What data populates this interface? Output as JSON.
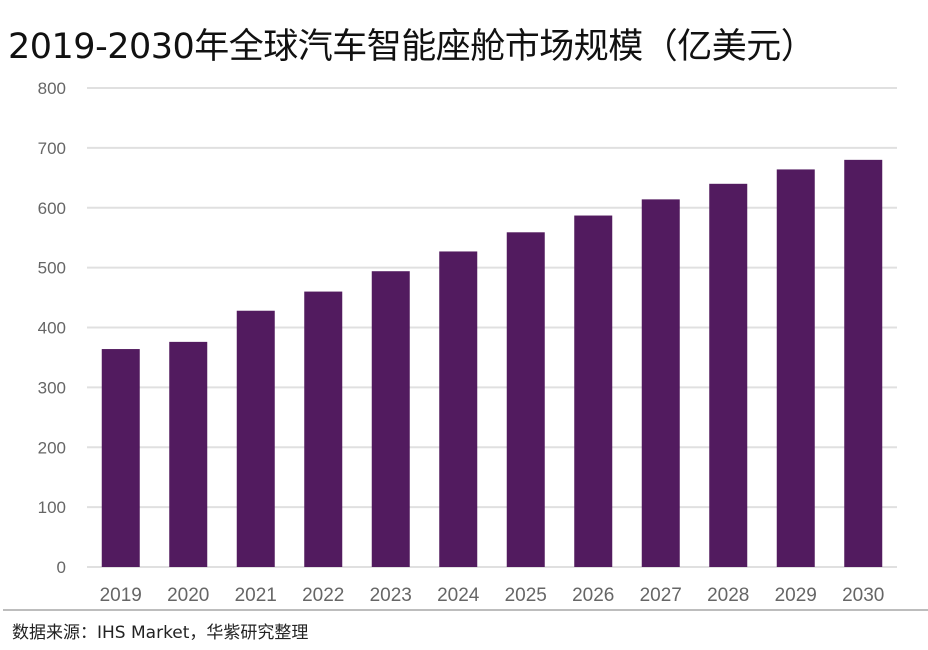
{
  "chart_data": {
    "type": "bar",
    "title": "2019-2030年全球汽车智能座舱市场规模（亿美元）",
    "xlabel": "",
    "ylabel": "",
    "categories": [
      "2019",
      "2020",
      "2021",
      "2022",
      "2023",
      "2024",
      "2025",
      "2026",
      "2027",
      "2028",
      "2029",
      "2030"
    ],
    "values": [
      364,
      376,
      428,
      460,
      494,
      527,
      559,
      587,
      614,
      640,
      664,
      680
    ],
    "ylim": [
      0,
      800
    ],
    "yticks": [
      0,
      100,
      200,
      300,
      400,
      500,
      600,
      700,
      800
    ],
    "grid": true,
    "legend": "none",
    "bar_color": "#521b5f",
    "grid_color": "#e0e0e0",
    "tick_label_color": "#666666"
  },
  "source": "数据来源：IHS Market，华紫研究整理"
}
